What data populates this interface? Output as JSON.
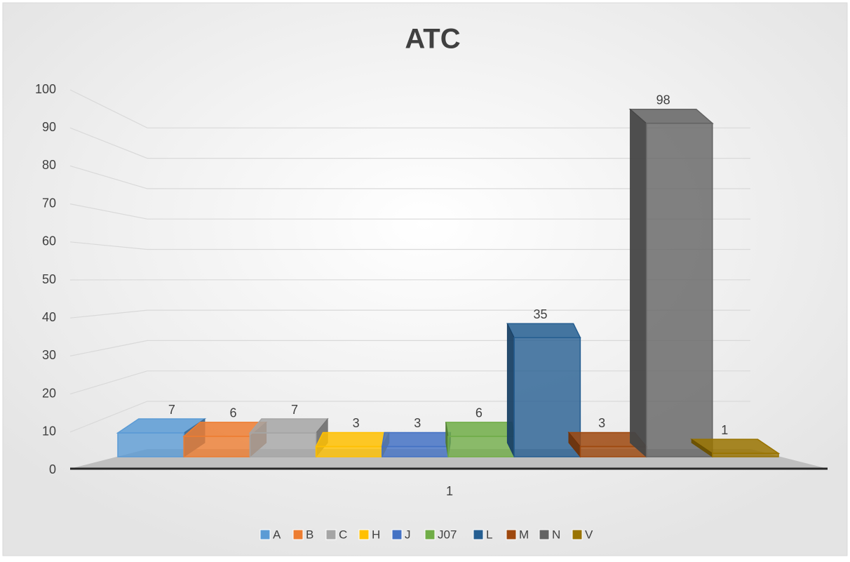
{
  "chart_data": {
    "type": "bar3d",
    "title": "ATC",
    "categories": [
      "1"
    ],
    "series": [
      {
        "name": "A",
        "color": "#5b9bd5",
        "values": [
          7
        ]
      },
      {
        "name": "B",
        "color": "#ed7d31",
        "values": [
          6
        ]
      },
      {
        "name": "C",
        "color": "#a5a5a5",
        "values": [
          7
        ]
      },
      {
        "name": "H",
        "color": "#ffc000",
        "values": [
          3
        ]
      },
      {
        "name": "J",
        "color": "#4472c4",
        "values": [
          3
        ]
      },
      {
        "name": "J07",
        "color": "#70ad47",
        "values": [
          6
        ]
      },
      {
        "name": "L",
        "color": "#255e91",
        "values": [
          35
        ]
      },
      {
        "name": "M",
        "color": "#9e480e",
        "values": [
          3
        ]
      },
      {
        "name": "N",
        "color": "#636363",
        "values": [
          98
        ]
      },
      {
        "name": "V",
        "color": "#997300",
        "values": [
          1
        ]
      }
    ],
    "ylim": [
      0,
      100
    ],
    "yticks": [
      0,
      10,
      20,
      30,
      40,
      50,
      60,
      70,
      80,
      90,
      100
    ],
    "grid": true,
    "legend": "bottom"
  }
}
